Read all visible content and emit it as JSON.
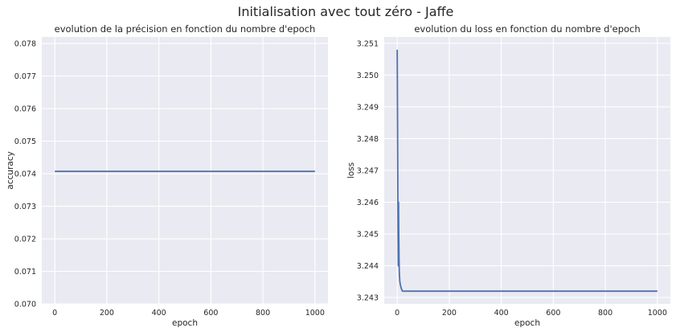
{
  "figure": {
    "suptitle": "Initialisation avec tout zéro - Jaffe"
  },
  "chart_data": [
    {
      "type": "line",
      "title": "evolution de la précision en fonction du nombre d'epoch",
      "xlabel": "epoch",
      "ylabel": "accuracy",
      "xlim": [
        -50,
        1050
      ],
      "ylim": [
        0.07,
        0.0782
      ],
      "xticks": [
        0,
        200,
        400,
        600,
        800,
        1000
      ],
      "xtick_labels": [
        "0",
        "200",
        "400",
        "600",
        "800",
        "1000"
      ],
      "yticks": [
        0.07,
        0.071,
        0.072,
        0.073,
        0.074,
        0.075,
        0.076,
        0.077,
        0.078
      ],
      "ytick_labels": [
        "0.070",
        "0.071",
        "0.072",
        "0.073",
        "0.074",
        "0.075",
        "0.076",
        "0.077",
        "0.078"
      ],
      "grid": true,
      "background": "#eaeaf2",
      "series": [
        {
          "color": "#4c72b0",
          "x": [
            0,
            1000
          ],
          "y": [
            0.07407,
            0.07407
          ]
        }
      ]
    },
    {
      "type": "line",
      "title": "evolution du loss en fonction du nombre d'epoch",
      "xlabel": "epoch",
      "ylabel": "loss",
      "xlim": [
        -50,
        1050
      ],
      "ylim": [
        3.2428,
        3.2512
      ],
      "xticks": [
        0,
        200,
        400,
        600,
        800,
        1000
      ],
      "xtick_labels": [
        "0",
        "200",
        "400",
        "600",
        "800",
        "1000"
      ],
      "yticks": [
        3.243,
        3.244,
        3.245,
        3.246,
        3.247,
        3.248,
        3.249,
        3.25,
        3.251
      ],
      "ytick_labels": [
        "3.243",
        "3.244",
        "3.245",
        "3.246",
        "3.247",
        "3.248",
        "3.249",
        "3.250",
        "3.251"
      ],
      "grid": true,
      "background": "#eaeaf2",
      "series": [
        {
          "color": "#4c72b0",
          "x": [
            0,
            1,
            2,
            3,
            4,
            5,
            6,
            7,
            8,
            10,
            12,
            15,
            20,
            25,
            30,
            40,
            60,
            100,
            200,
            400,
            600,
            800,
            1000
          ],
          "y": [
            3.2508,
            3.249,
            3.247,
            3.2452,
            3.244,
            3.246,
            3.2449,
            3.2442,
            3.2438,
            3.2435,
            3.2434,
            3.2433,
            3.2432,
            3.2432,
            3.2432,
            3.2432,
            3.2432,
            3.2432,
            3.2432,
            3.2432,
            3.2432,
            3.2432,
            3.2432
          ]
        }
      ]
    }
  ]
}
